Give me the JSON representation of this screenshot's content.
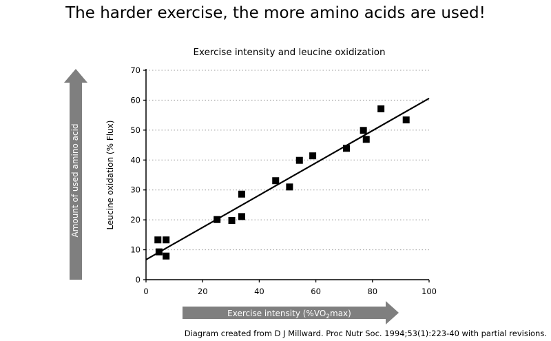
{
  "headline": "The harder exercise, the more amino acids are used!",
  "credit": "Diagram created from D J Millward. Proc Nutr Soc. 1994;53(1):223-40 with partial revisions.",
  "arrows": {
    "vertical_label": "Amount of used amino acid",
    "horizontal_label_prefix": "Exercise intensity (%VO",
    "horizontal_label_sub": "2",
    "horizontal_label_suffix": "max)",
    "color": "#7f7f7f"
  },
  "chart_data": {
    "type": "scatter",
    "title": "Exercise intensity and leucine oxidization",
    "xlabel": "",
    "ylabel": "Leucine oxidation (% Flux)",
    "xlim": [
      0,
      100
    ],
    "ylim": [
      0,
      70
    ],
    "xticks": [
      0,
      20,
      40,
      60,
      80,
      100
    ],
    "yticks": [
      0,
      10,
      20,
      30,
      40,
      50,
      60,
      70
    ],
    "grid": "horizontal dotted",
    "points": [
      [
        4.2,
        13.3
      ],
      [
        7.1,
        13.3
      ],
      [
        4.6,
        9.3
      ],
      [
        7.1,
        7.9
      ],
      [
        25.1,
        20.1
      ],
      [
        30.3,
        19.8
      ],
      [
        33.8,
        21.1
      ],
      [
        33.8,
        28.6
      ],
      [
        45.8,
        33.1
      ],
      [
        50.7,
        31.0
      ],
      [
        54.2,
        39.9
      ],
      [
        58.9,
        41.4
      ],
      [
        70.8,
        43.9
      ],
      [
        76.8,
        49.9
      ],
      [
        77.8,
        46.9
      ],
      [
        83.0,
        57.1
      ],
      [
        91.9,
        53.4
      ]
    ],
    "trendline": {
      "x": [
        0,
        100
      ],
      "y": [
        6.7,
        60.6
      ]
    }
  }
}
